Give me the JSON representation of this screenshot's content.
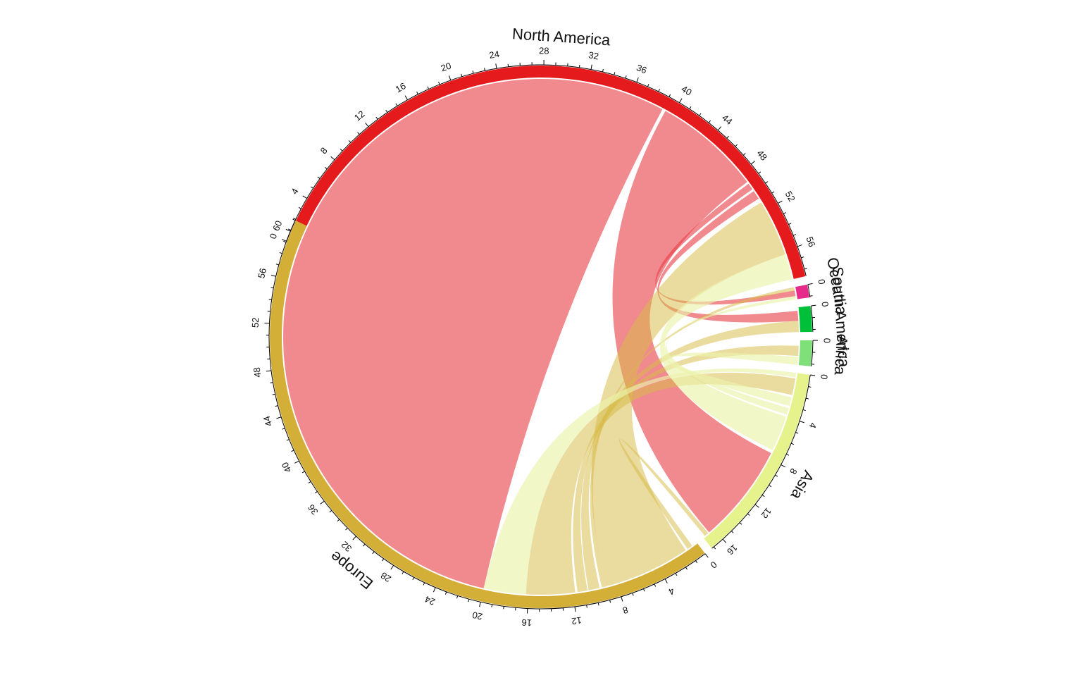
{
  "chart_data": {
    "type": "chord",
    "title": "",
    "tick_major_step": 4,
    "sectors": [
      {
        "name": "North America",
        "length": 58.6,
        "color": "#E41A1C",
        "label_size": "large"
      },
      {
        "name": "Oceania",
        "length": 1.1,
        "color": "#E7298A",
        "label_size": "small"
      },
      {
        "name": "South America",
        "length": 2.2,
        "color": "#00C03A",
        "label_size": "small"
      },
      {
        "name": "Africa",
        "length": 2.2,
        "color": "#7FE07A",
        "label_size": "small"
      },
      {
        "name": "Asia",
        "length": 17.2,
        "color": "#E6F28C",
        "label_size": "large"
      },
      {
        "name": "Europe",
        "length": 61.0,
        "color": "#D4AF37",
        "label_size": "large"
      }
    ],
    "links": [
      {
        "from": "North America",
        "from_start": 0.0,
        "from_end": 39.0,
        "to": "Europe",
        "to_start": 20.0,
        "to_end": 59.4
      },
      {
        "from": "North America",
        "from_start": 39.3,
        "from_end": 49.0,
        "to": "Asia",
        "to_start": 7.5,
        "to_end": 16.5
      },
      {
        "from": "North America",
        "from_start": 49.2,
        "from_end": 49.8,
        "to": "Oceania",
        "to_start": 0.3,
        "to_end": 0.8
      },
      {
        "from": "North America",
        "from_start": 50.0,
        "from_end": 50.8,
        "to": "South America",
        "to_start": 0.3,
        "to_end": 1.2
      },
      {
        "from": "Europe",
        "from_start": 0.5,
        "from_end": 1.0,
        "to": "Asia",
        "to_start": 16.6,
        "to_end": 17.0
      },
      {
        "from": "Europe",
        "from_start": 1.2,
        "from_end": 9.0,
        "to": "North America",
        "to_start": 51.2,
        "to_end": 56.3
      },
      {
        "from": "Europe",
        "from_start": 9.0,
        "from_end": 9.4,
        "to": "Oceania",
        "to_start": 0.0,
        "to_end": 0.3
      },
      {
        "from": "Europe",
        "from_start": 9.6,
        "from_end": 10.6,
        "to": "South America",
        "to_start": 1.2,
        "to_end": 2.2
      },
      {
        "from": "Europe",
        "from_start": 10.7,
        "from_end": 11.6,
        "to": "Africa",
        "to_start": 0.5,
        "to_end": 1.4
      },
      {
        "from": "Europe",
        "from_start": 11.8,
        "from_end": 16.2,
        "to": "Asia",
        "to_start": 0.5,
        "to_end": 2.0
      },
      {
        "from": "Asia",
        "from_start": 2.2,
        "from_end": 3.0,
        "to": "Africa",
        "to_start": 1.5,
        "to_end": 2.2
      },
      {
        "from": "Asia",
        "from_start": 3.2,
        "from_end": 3.8,
        "to": "Oceania",
        "to_start": 0.8,
        "to_end": 1.1
      },
      {
        "from": "Asia",
        "from_start": 4.0,
        "from_end": 7.2,
        "to": "North America",
        "to_start": 56.3,
        "to_end": 58.6
      },
      {
        "from": "Asia",
        "from_start": 0.0,
        "from_end": 0.4,
        "to": "Europe",
        "to_start": 16.2,
        "to_end": 20.0
      }
    ]
  }
}
